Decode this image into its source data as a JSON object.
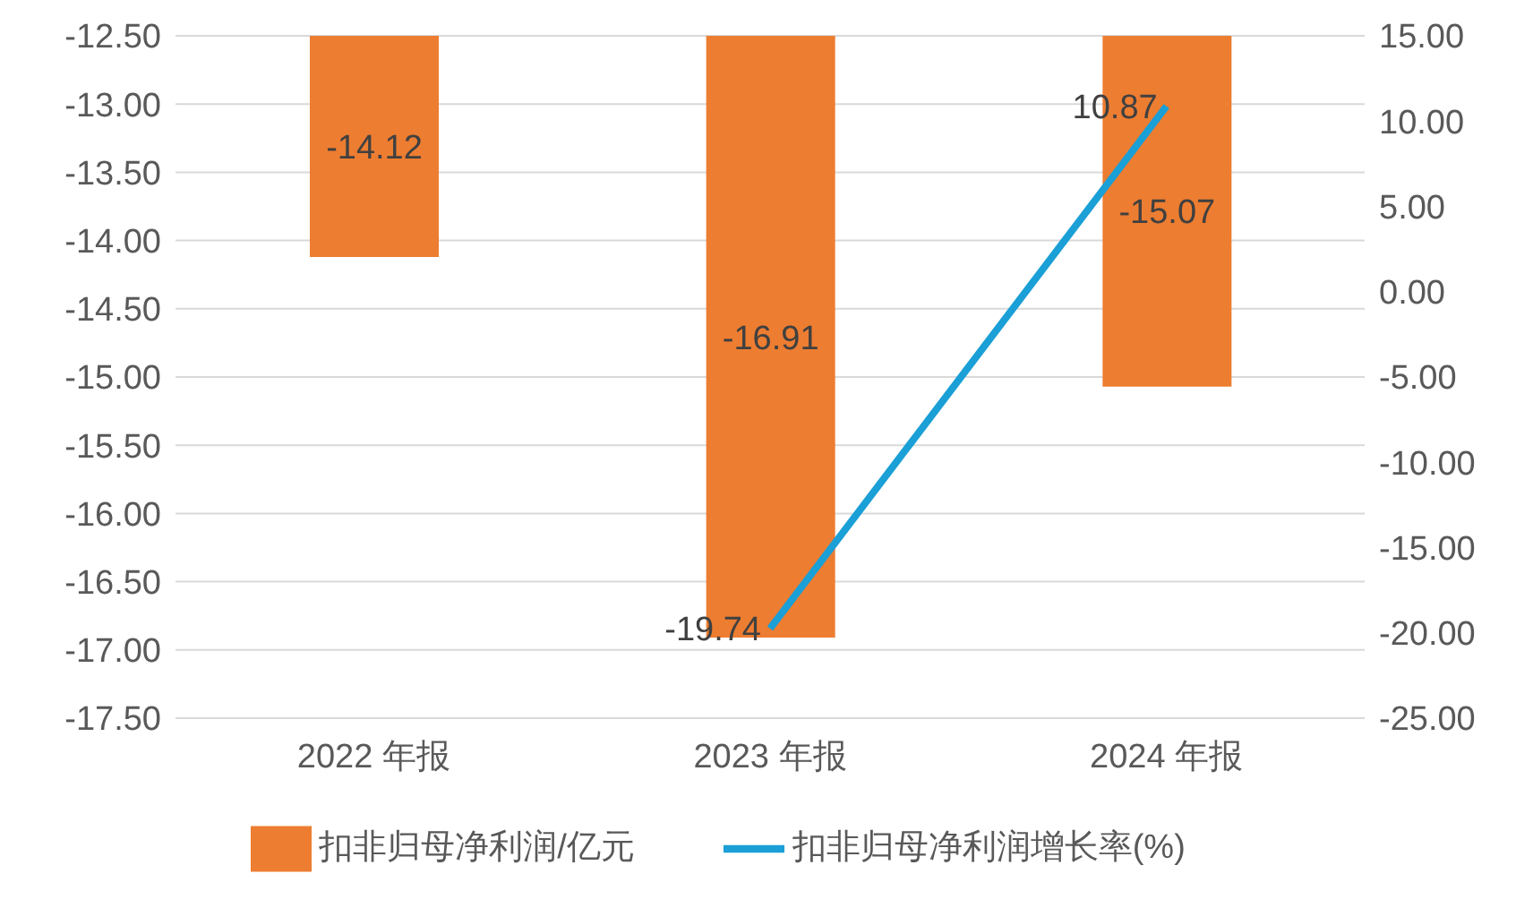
{
  "chart_data": {
    "type": "bar",
    "categories": [
      "2022 年报",
      "2023 年报",
      "2024 年报"
    ],
    "series": [
      {
        "name": "扣非归母净利润/亿元",
        "color": "#ed7d31",
        "values": [
          -14.12,
          -16.91,
          -15.07
        ]
      },
      {
        "name": "扣非归母净利润增长率(%)",
        "type": "line",
        "axis": "y2",
        "color": "#1a9fd6",
        "values": [
          null,
          -19.74,
          10.87
        ]
      }
    ],
    "ylim": [
      -17.5,
      -12.5
    ],
    "yticks": [
      {
        "value": -12.5,
        "label": "-12.50"
      },
      {
        "value": -13,
        "label": "-13.00"
      },
      {
        "value": -13.5,
        "label": "-13.50"
      },
      {
        "value": -14,
        "label": "-14.00"
      },
      {
        "value": -14.5,
        "label": "-14.50"
      },
      {
        "value": -15,
        "label": "-15.00"
      },
      {
        "value": -15.5,
        "label": "-15.50"
      },
      {
        "value": -16,
        "label": "-16.00"
      },
      {
        "value": -16.5,
        "label": "-16.50"
      },
      {
        "value": -17,
        "label": "-17.00"
      },
      {
        "value": -17.5,
        "label": "-17.50"
      }
    ],
    "y2lim": [
      -25,
      15
    ],
    "y2ticks": [
      {
        "value": 15,
        "label": "15.00"
      },
      {
        "value": 10,
        "label": "10.00"
      },
      {
        "value": 5,
        "label": "5.00"
      },
      {
        "value": 0,
        "label": "0.00"
      },
      {
        "value": -5,
        "label": "-5.00"
      },
      {
        "value": -10,
        "label": "-10.00"
      },
      {
        "value": -15,
        "label": "-15.00"
      },
      {
        "value": -20,
        "label": "-20.00"
      },
      {
        "value": -25,
        "label": "-25.00"
      }
    ],
    "grid": "y",
    "legend": "bottom",
    "marker": "none",
    "line_style": "solid",
    "data_labels": true
  }
}
